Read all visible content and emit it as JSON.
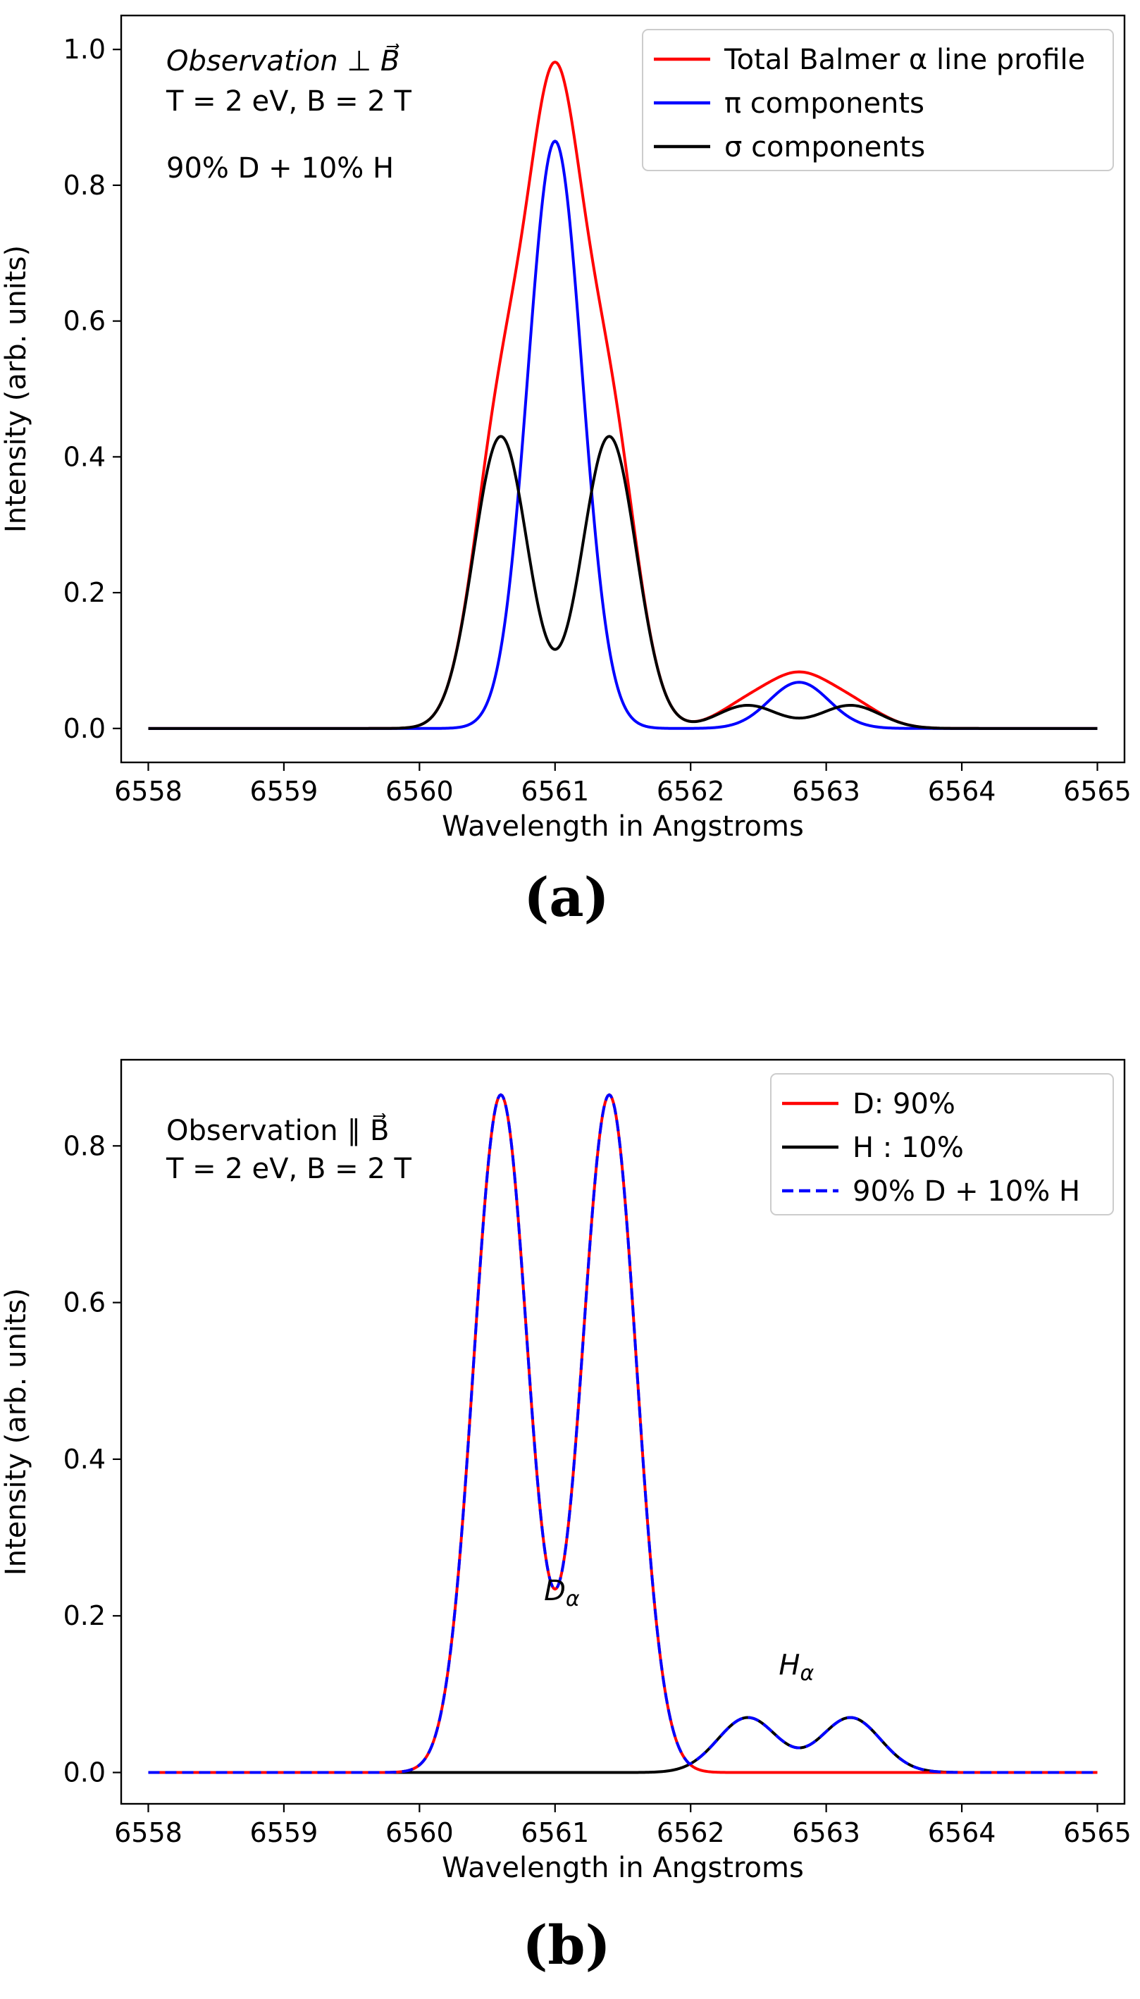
{
  "figure": {
    "panels": [
      {
        "id": "a",
        "label_open": "(",
        "label_letter": "a",
        "label_close": ")",
        "xlabel": "Wavelength in Angstroms",
        "ylabel": "Intensity (arb. units)",
        "annotations": [
          {
            "text": "Observation ⊥ B⃗",
            "italic": true
          },
          {
            "text": "T = 2 eV,  B = 2 T",
            "italic": false
          },
          {
            "text": "90% D  +  10% H",
            "italic": false
          }
        ]
      },
      {
        "id": "b",
        "label_open": "(",
        "label_letter": "b",
        "label_close": ")",
        "xlabel": "Wavelength in Angstroms",
        "ylabel": "Intensity (arb. units)",
        "annotations": [
          {
            "text": "Observation  ∥ B⃗",
            "italic": false
          },
          {
            "text": "T = 2 eV,  B = 2 T",
            "italic": false
          }
        ],
        "peak_labels": [
          {
            "main": "D",
            "sub": "α",
            "x": 6561.05,
            "y": 0.22
          },
          {
            "main": "H",
            "sub": "α",
            "x": 6562.78,
            "y": 0.125
          }
        ]
      }
    ]
  },
  "chart_data": [
    {
      "type": "line",
      "title": "",
      "xlabel": "Wavelength in Angstroms",
      "ylabel": "Intensity (arb. units)",
      "xlim": [
        6557.8,
        6565.2
      ],
      "ylim": [
        -0.05,
        1.05
      ],
      "xticks": [
        6558,
        6559,
        6560,
        6561,
        6562,
        6563,
        6564,
        6565
      ],
      "yticks": [
        0.0,
        0.2,
        0.4,
        0.6,
        0.8,
        1.0
      ],
      "ytick_labels": [
        "0.0",
        "0.2",
        "0.4",
        "0.6",
        "0.8",
        "1.0"
      ],
      "x_range": [
        6558,
        6565
      ],
      "legend_position": "upper-right",
      "series": [
        {
          "name": "Total Balmer α line profile",
          "color": "#ff0000",
          "style": "solid"
        },
        {
          "name": "π components",
          "color": "#0000ff",
          "style": "solid"
        },
        {
          "name": "σ components",
          "color": "#000000",
          "style": "solid"
        }
      ],
      "model": {
        "pi": [
          {
            "center": 6561.0,
            "amp": 0.865,
            "sigma": 0.2
          },
          {
            "center": 6562.8,
            "amp": 0.068,
            "sigma": 0.22
          }
        ],
        "sigma": [
          {
            "center": 6560.6,
            "amp": 0.43,
            "sigma": 0.2
          },
          {
            "center": 6561.4,
            "amp": 0.43,
            "sigma": 0.2
          },
          {
            "center": 6562.42,
            "amp": 0.034,
            "sigma": 0.22
          },
          {
            "center": 6563.18,
            "amp": 0.034,
            "sigma": 0.22
          }
        ]
      }
    },
    {
      "type": "line",
      "title": "",
      "xlabel": "Wavelength in Angstroms",
      "ylabel": "Intensity (arb. units)",
      "xlim": [
        6557.8,
        6565.2
      ],
      "ylim": [
        -0.04,
        0.91
      ],
      "xticks": [
        6558,
        6559,
        6560,
        6561,
        6562,
        6563,
        6564,
        6565
      ],
      "yticks": [
        0.0,
        0.2,
        0.4,
        0.6,
        0.8
      ],
      "ytick_labels": [
        "0.0",
        "0.2",
        "0.4",
        "0.6",
        "0.8"
      ],
      "x_range": [
        6558,
        6565
      ],
      "legend_position": "upper-right",
      "series": [
        {
          "name": "D: 90%",
          "color": "#ff0000",
          "style": "solid"
        },
        {
          "name": "H : 10%",
          "color": "#000000",
          "style": "solid"
        },
        {
          "name": "90% D +  10% H",
          "color": "#0000ff",
          "style": "dashed"
        }
      ],
      "model": {
        "D": [
          {
            "center": 6560.6,
            "amp": 0.865,
            "sigma": 0.2
          },
          {
            "center": 6561.4,
            "amp": 0.865,
            "sigma": 0.2
          }
        ],
        "H": [
          {
            "center": 6562.42,
            "amp": 0.07,
            "sigma": 0.22
          },
          {
            "center": 6563.18,
            "amp": 0.07,
            "sigma": 0.22
          }
        ]
      }
    }
  ]
}
